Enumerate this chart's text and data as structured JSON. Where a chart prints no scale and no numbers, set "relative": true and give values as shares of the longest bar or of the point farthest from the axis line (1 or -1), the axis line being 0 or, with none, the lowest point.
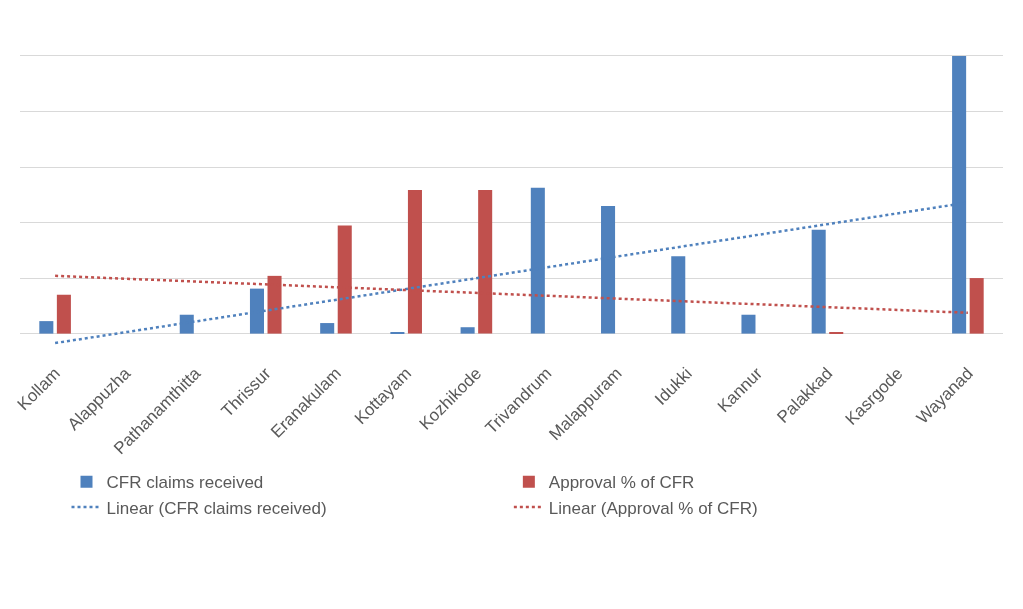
{
  "chart_data": {
    "type": "bar",
    "relative": true,
    "grid": "y",
    "legend": "bottom",
    "categories": [
      "Kollam",
      "Alappuzha",
      "Pathanamthitta",
      "Thrissur",
      "Eranakulam",
      "Kottayam",
      "Kozhikode",
      "Trivandrum",
      "Malappuram",
      "Idukki",
      "Kannur",
      "Palakkad",
      "Kasrgode",
      "Wayanad"
    ],
    "series": [
      {
        "name": "CFR claims received",
        "color": "#4f81bd",
        "values": [
          0.045,
          0,
          0.068,
          0.162,
          0.038,
          0.004,
          0.023,
          0.525,
          0.46,
          0.279,
          0.068,
          0.374,
          0,
          1
        ]
      },
      {
        "name": "Approval % of CFR",
        "color": "#c0504d",
        "values": [
          0.14,
          0,
          0,
          0.208,
          0.389,
          0.517,
          0.517,
          0,
          0,
          0,
          0,
          0.004,
          0,
          0.2
        ]
      },
      {
        "name": "Linear (CFR claims received)",
        "type": "line",
        "line_style": "dotted",
        "color": "#4f81bd",
        "x": [
          "Kollam",
          "Wayanad"
        ],
        "values": [
          -0.034,
          0.472
        ]
      },
      {
        "name": "Linear (Approval % of CFR)",
        "type": "line",
        "line_style": "dotted",
        "color": "#c0504d",
        "x": [
          "Kollam",
          "Wayanad"
        ],
        "values": [
          0.208,
          0.075
        ]
      }
    ]
  }
}
